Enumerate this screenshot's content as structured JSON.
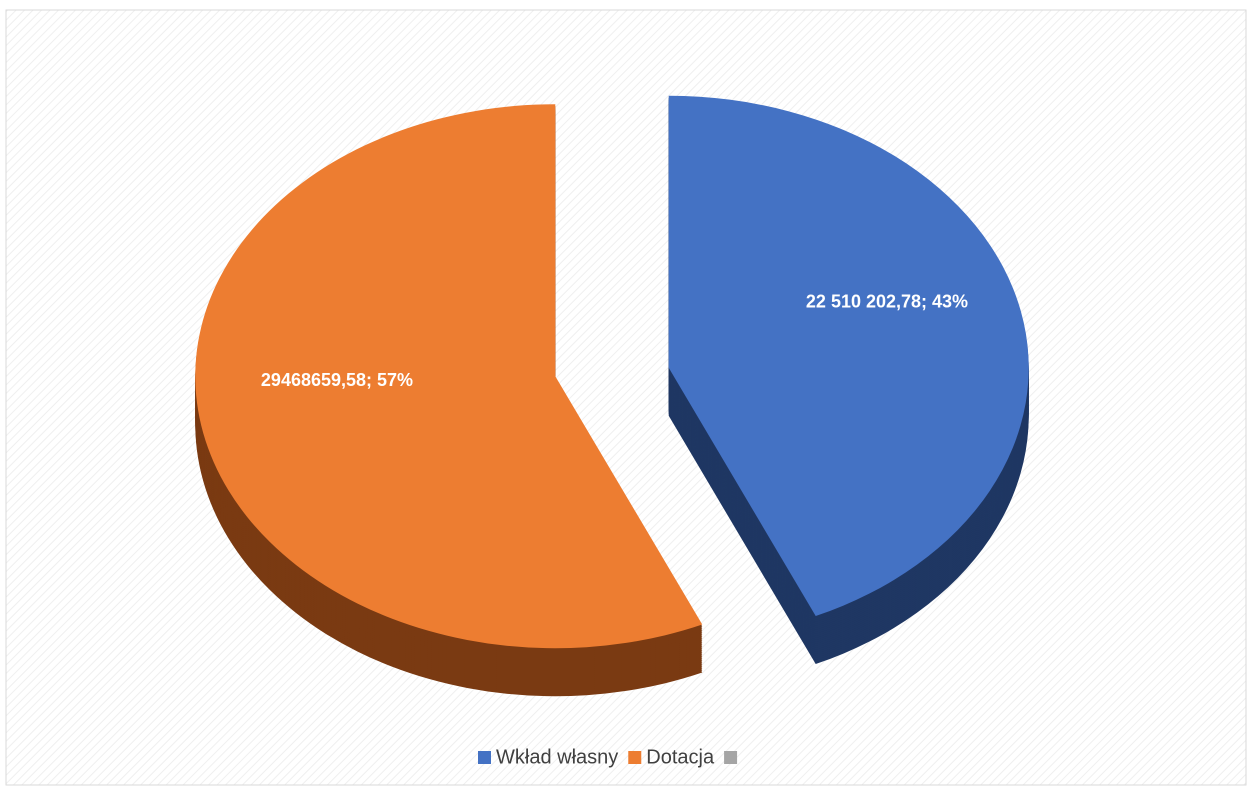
{
  "chart_data": {
    "type": "pie",
    "categories": [
      "Wkład własny",
      "Dotacja",
      null
    ],
    "values": [
      22510202.78,
      29468659.58,
      null
    ],
    "value_labels": [
      "22 510 202,78; 43%",
      "29468659,58; 57%",
      null
    ],
    "colors": [
      "#4472c4",
      "#ed7d31",
      "#a5a5a5"
    ],
    "side_colors": [
      "#1f3763",
      "#7a3a12",
      "#555555"
    ],
    "legend": "bottom"
  }
}
